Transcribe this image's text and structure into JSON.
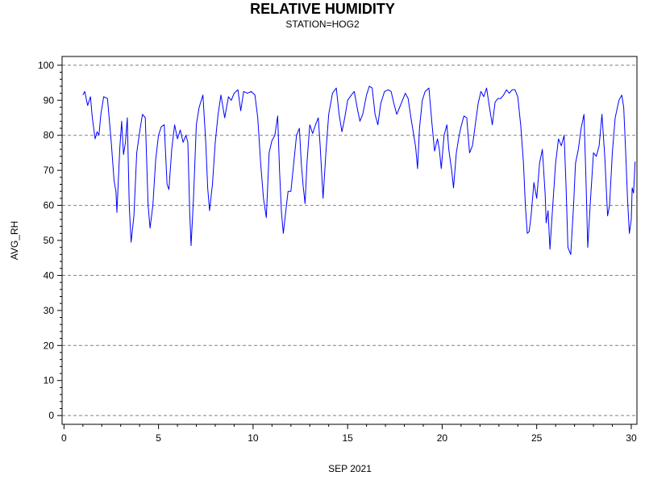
{
  "chart_data": {
    "type": "line",
    "title": "RELATIVE HUMIDITY",
    "subtitle": "STATION=HOG2",
    "xlabel": "SEP 2021",
    "ylabel": "AVG_RH",
    "xlim": [
      -0.1,
      30.3
    ],
    "ylim": [
      -2.5,
      102.5
    ],
    "x_ticks": [
      0,
      5,
      10,
      15,
      20,
      25,
      30
    ],
    "y_ticks": [
      0,
      10,
      20,
      30,
      40,
      50,
      60,
      70,
      80,
      90,
      100
    ],
    "gridlines_y": [
      0,
      20,
      40,
      60,
      80,
      100
    ],
    "grid": "horizontal dashed",
    "colors": {
      "series": "#0000ff",
      "grid": "#808080",
      "axis": "#000000"
    },
    "series": [
      {
        "color": "#0000ff",
        "points": [
          [
            1.0,
            91.5
          ],
          [
            1.1,
            92.5
          ],
          [
            1.25,
            88.5
          ],
          [
            1.4,
            91.0
          ],
          [
            1.5,
            85.0
          ],
          [
            1.65,
            79.0
          ],
          [
            1.75,
            81.0
          ],
          [
            1.85,
            80.0
          ],
          [
            1.95,
            86.0
          ],
          [
            2.1,
            91.0
          ],
          [
            2.3,
            90.5
          ],
          [
            2.5,
            78.0
          ],
          [
            2.65,
            67.0
          ],
          [
            2.75,
            64.0
          ],
          [
            2.8,
            58.0
          ],
          [
            2.95,
            76.0
          ],
          [
            3.05,
            84.0
          ],
          [
            3.15,
            74.5
          ],
          [
            3.25,
            78.0
          ],
          [
            3.35,
            85.0
          ],
          [
            3.45,
            60.0
          ],
          [
            3.55,
            49.5
          ],
          [
            3.7,
            57.0
          ],
          [
            3.85,
            75.0
          ],
          [
            4.0,
            81.0
          ],
          [
            4.15,
            86.0
          ],
          [
            4.3,
            85.0
          ],
          [
            4.45,
            60.0
          ],
          [
            4.55,
            53.5
          ],
          [
            4.7,
            60.0
          ],
          [
            4.85,
            73.0
          ],
          [
            5.0,
            80.0
          ],
          [
            5.15,
            82.5
          ],
          [
            5.3,
            83.0
          ],
          [
            5.45,
            66.0
          ],
          [
            5.55,
            64.5
          ],
          [
            5.7,
            76.0
          ],
          [
            5.85,
            83.0
          ],
          [
            6.0,
            79.0
          ],
          [
            6.15,
            81.5
          ],
          [
            6.3,
            78.0
          ],
          [
            6.45,
            80.0
          ],
          [
            6.55,
            78.0
          ],
          [
            6.65,
            58.0
          ],
          [
            6.72,
            48.5
          ],
          [
            6.85,
            62.0
          ],
          [
            7.0,
            83.0
          ],
          [
            7.15,
            88.0
          ],
          [
            7.35,
            91.5
          ],
          [
            7.5,
            78.0
          ],
          [
            7.6,
            65.0
          ],
          [
            7.7,
            58.5
          ],
          [
            7.85,
            66.0
          ],
          [
            8.0,
            78.0
          ],
          [
            8.15,
            86.0
          ],
          [
            8.3,
            91.5
          ],
          [
            8.5,
            85.0
          ],
          [
            8.7,
            91.0
          ],
          [
            8.85,
            90.0
          ],
          [
            9.0,
            92.0
          ],
          [
            9.2,
            93.0
          ],
          [
            9.35,
            87.0
          ],
          [
            9.5,
            92.5
          ],
          [
            9.7,
            92.0
          ],
          [
            9.9,
            92.5
          ],
          [
            10.1,
            91.5
          ],
          [
            10.25,
            85.0
          ],
          [
            10.4,
            72.0
          ],
          [
            10.55,
            62.0
          ],
          [
            10.7,
            56.5
          ],
          [
            10.85,
            75.0
          ],
          [
            11.0,
            78.5
          ],
          [
            11.15,
            80.0
          ],
          [
            11.3,
            85.5
          ],
          [
            11.4,
            70.0
          ],
          [
            11.5,
            58.0
          ],
          [
            11.6,
            52.0
          ],
          [
            11.7,
            57.0
          ],
          [
            11.85,
            64.0
          ],
          [
            12.0,
            64.0
          ],
          [
            12.15,
            72.0
          ],
          [
            12.3,
            80.0
          ],
          [
            12.45,
            82.0
          ],
          [
            12.55,
            72.0
          ],
          [
            12.65,
            65.5
          ],
          [
            12.75,
            60.5
          ],
          [
            12.85,
            72.0
          ],
          [
            13.0,
            83.0
          ],
          [
            13.15,
            80.5
          ],
          [
            13.3,
            83.0
          ],
          [
            13.45,
            85.0
          ],
          [
            13.55,
            77.0
          ],
          [
            13.7,
            62.0
          ],
          [
            13.85,
            75.0
          ],
          [
            14.0,
            86.0
          ],
          [
            14.2,
            92.0
          ],
          [
            14.4,
            93.5
          ],
          [
            14.55,
            86.0
          ],
          [
            14.7,
            81.0
          ],
          [
            14.85,
            85.0
          ],
          [
            15.0,
            90.0
          ],
          [
            15.2,
            91.5
          ],
          [
            15.35,
            92.5
          ],
          [
            15.5,
            88.0
          ],
          [
            15.65,
            84.0
          ],
          [
            15.8,
            86.0
          ],
          [
            16.0,
            91.5
          ],
          [
            16.15,
            94.0
          ],
          [
            16.3,
            93.5
          ],
          [
            16.45,
            86.0
          ],
          [
            16.6,
            83.0
          ],
          [
            16.75,
            89.0
          ],
          [
            16.95,
            92.5
          ],
          [
            17.15,
            93.0
          ],
          [
            17.3,
            92.5
          ],
          [
            17.45,
            89.0
          ],
          [
            17.6,
            86.0
          ],
          [
            17.75,
            88.0
          ],
          [
            17.9,
            90.0
          ],
          [
            18.05,
            92.0
          ],
          [
            18.2,
            90.5
          ],
          [
            18.35,
            85.0
          ],
          [
            18.5,
            80.0
          ],
          [
            18.6,
            76.5
          ],
          [
            18.7,
            70.5
          ],
          [
            18.8,
            82.0
          ],
          [
            18.95,
            90.0
          ],
          [
            19.1,
            92.5
          ],
          [
            19.3,
            93.5
          ],
          [
            19.45,
            84.0
          ],
          [
            19.6,
            75.5
          ],
          [
            19.75,
            79.0
          ],
          [
            19.85,
            76.0
          ],
          [
            19.95,
            70.5
          ],
          [
            20.1,
            80.0
          ],
          [
            20.25,
            83.0
          ],
          [
            20.35,
            76.0
          ],
          [
            20.5,
            70.0
          ],
          [
            20.6,
            65.0
          ],
          [
            20.75,
            75.0
          ],
          [
            20.9,
            80.0
          ],
          [
            21.0,
            82.5
          ],
          [
            21.15,
            85.5
          ],
          [
            21.3,
            85.0
          ],
          [
            21.45,
            75.0
          ],
          [
            21.6,
            77.0
          ],
          [
            21.75,
            83.0
          ],
          [
            21.9,
            89.0
          ],
          [
            22.05,
            92.5
          ],
          [
            22.2,
            91.0
          ],
          [
            22.35,
            93.5
          ],
          [
            22.5,
            88.0
          ],
          [
            22.65,
            83.0
          ],
          [
            22.8,
            89.5
          ],
          [
            22.95,
            90.5
          ],
          [
            23.1,
            90.5
          ],
          [
            23.25,
            91.5
          ],
          [
            23.4,
            93.0
          ],
          [
            23.55,
            92.0
          ],
          [
            23.7,
            93.0
          ],
          [
            23.85,
            93.0
          ],
          [
            24.0,
            91.0
          ],
          [
            24.15,
            83.0
          ],
          [
            24.3,
            72.0
          ],
          [
            24.4,
            60.0
          ],
          [
            24.5,
            52.0
          ],
          [
            24.6,
            52.5
          ],
          [
            24.7,
            57.0
          ],
          [
            24.85,
            66.5
          ],
          [
            25.0,
            62.0
          ],
          [
            25.15,
            72.0
          ],
          [
            25.3,
            76.0
          ],
          [
            25.45,
            63.0
          ],
          [
            25.5,
            55.0
          ],
          [
            25.6,
            58.5
          ],
          [
            25.7,
            47.5
          ],
          [
            25.85,
            60.0
          ],
          [
            26.0,
            72.0
          ],
          [
            26.15,
            79.0
          ],
          [
            26.3,
            77.0
          ],
          [
            26.45,
            80.0
          ],
          [
            26.55,
            66.0
          ],
          [
            26.65,
            48.0
          ],
          [
            26.8,
            46.0
          ],
          [
            26.95,
            60.0
          ],
          [
            27.05,
            72.0
          ],
          [
            27.2,
            76.0
          ],
          [
            27.35,
            82.0
          ],
          [
            27.5,
            86.0
          ],
          [
            27.6,
            68.0
          ],
          [
            27.7,
            48.0
          ],
          [
            27.85,
            62.0
          ],
          [
            28.0,
            75.0
          ],
          [
            28.15,
            74.0
          ],
          [
            28.3,
            77.0
          ],
          [
            28.45,
            86.0
          ],
          [
            28.6,
            74.0
          ],
          [
            28.75,
            57.0
          ],
          [
            28.85,
            60.0
          ],
          [
            29.0,
            75.0
          ],
          [
            29.15,
            85.0
          ],
          [
            29.35,
            90.0
          ],
          [
            29.5,
            91.5
          ],
          [
            29.6,
            88.0
          ],
          [
            29.7,
            76.0
          ],
          [
            29.8,
            62.0
          ],
          [
            29.9,
            52.0
          ],
          [
            30.0,
            56.0
          ],
          [
            30.05,
            65.0
          ],
          [
            30.12,
            63.5
          ],
          [
            30.2,
            72.5
          ]
        ]
      }
    ]
  }
}
